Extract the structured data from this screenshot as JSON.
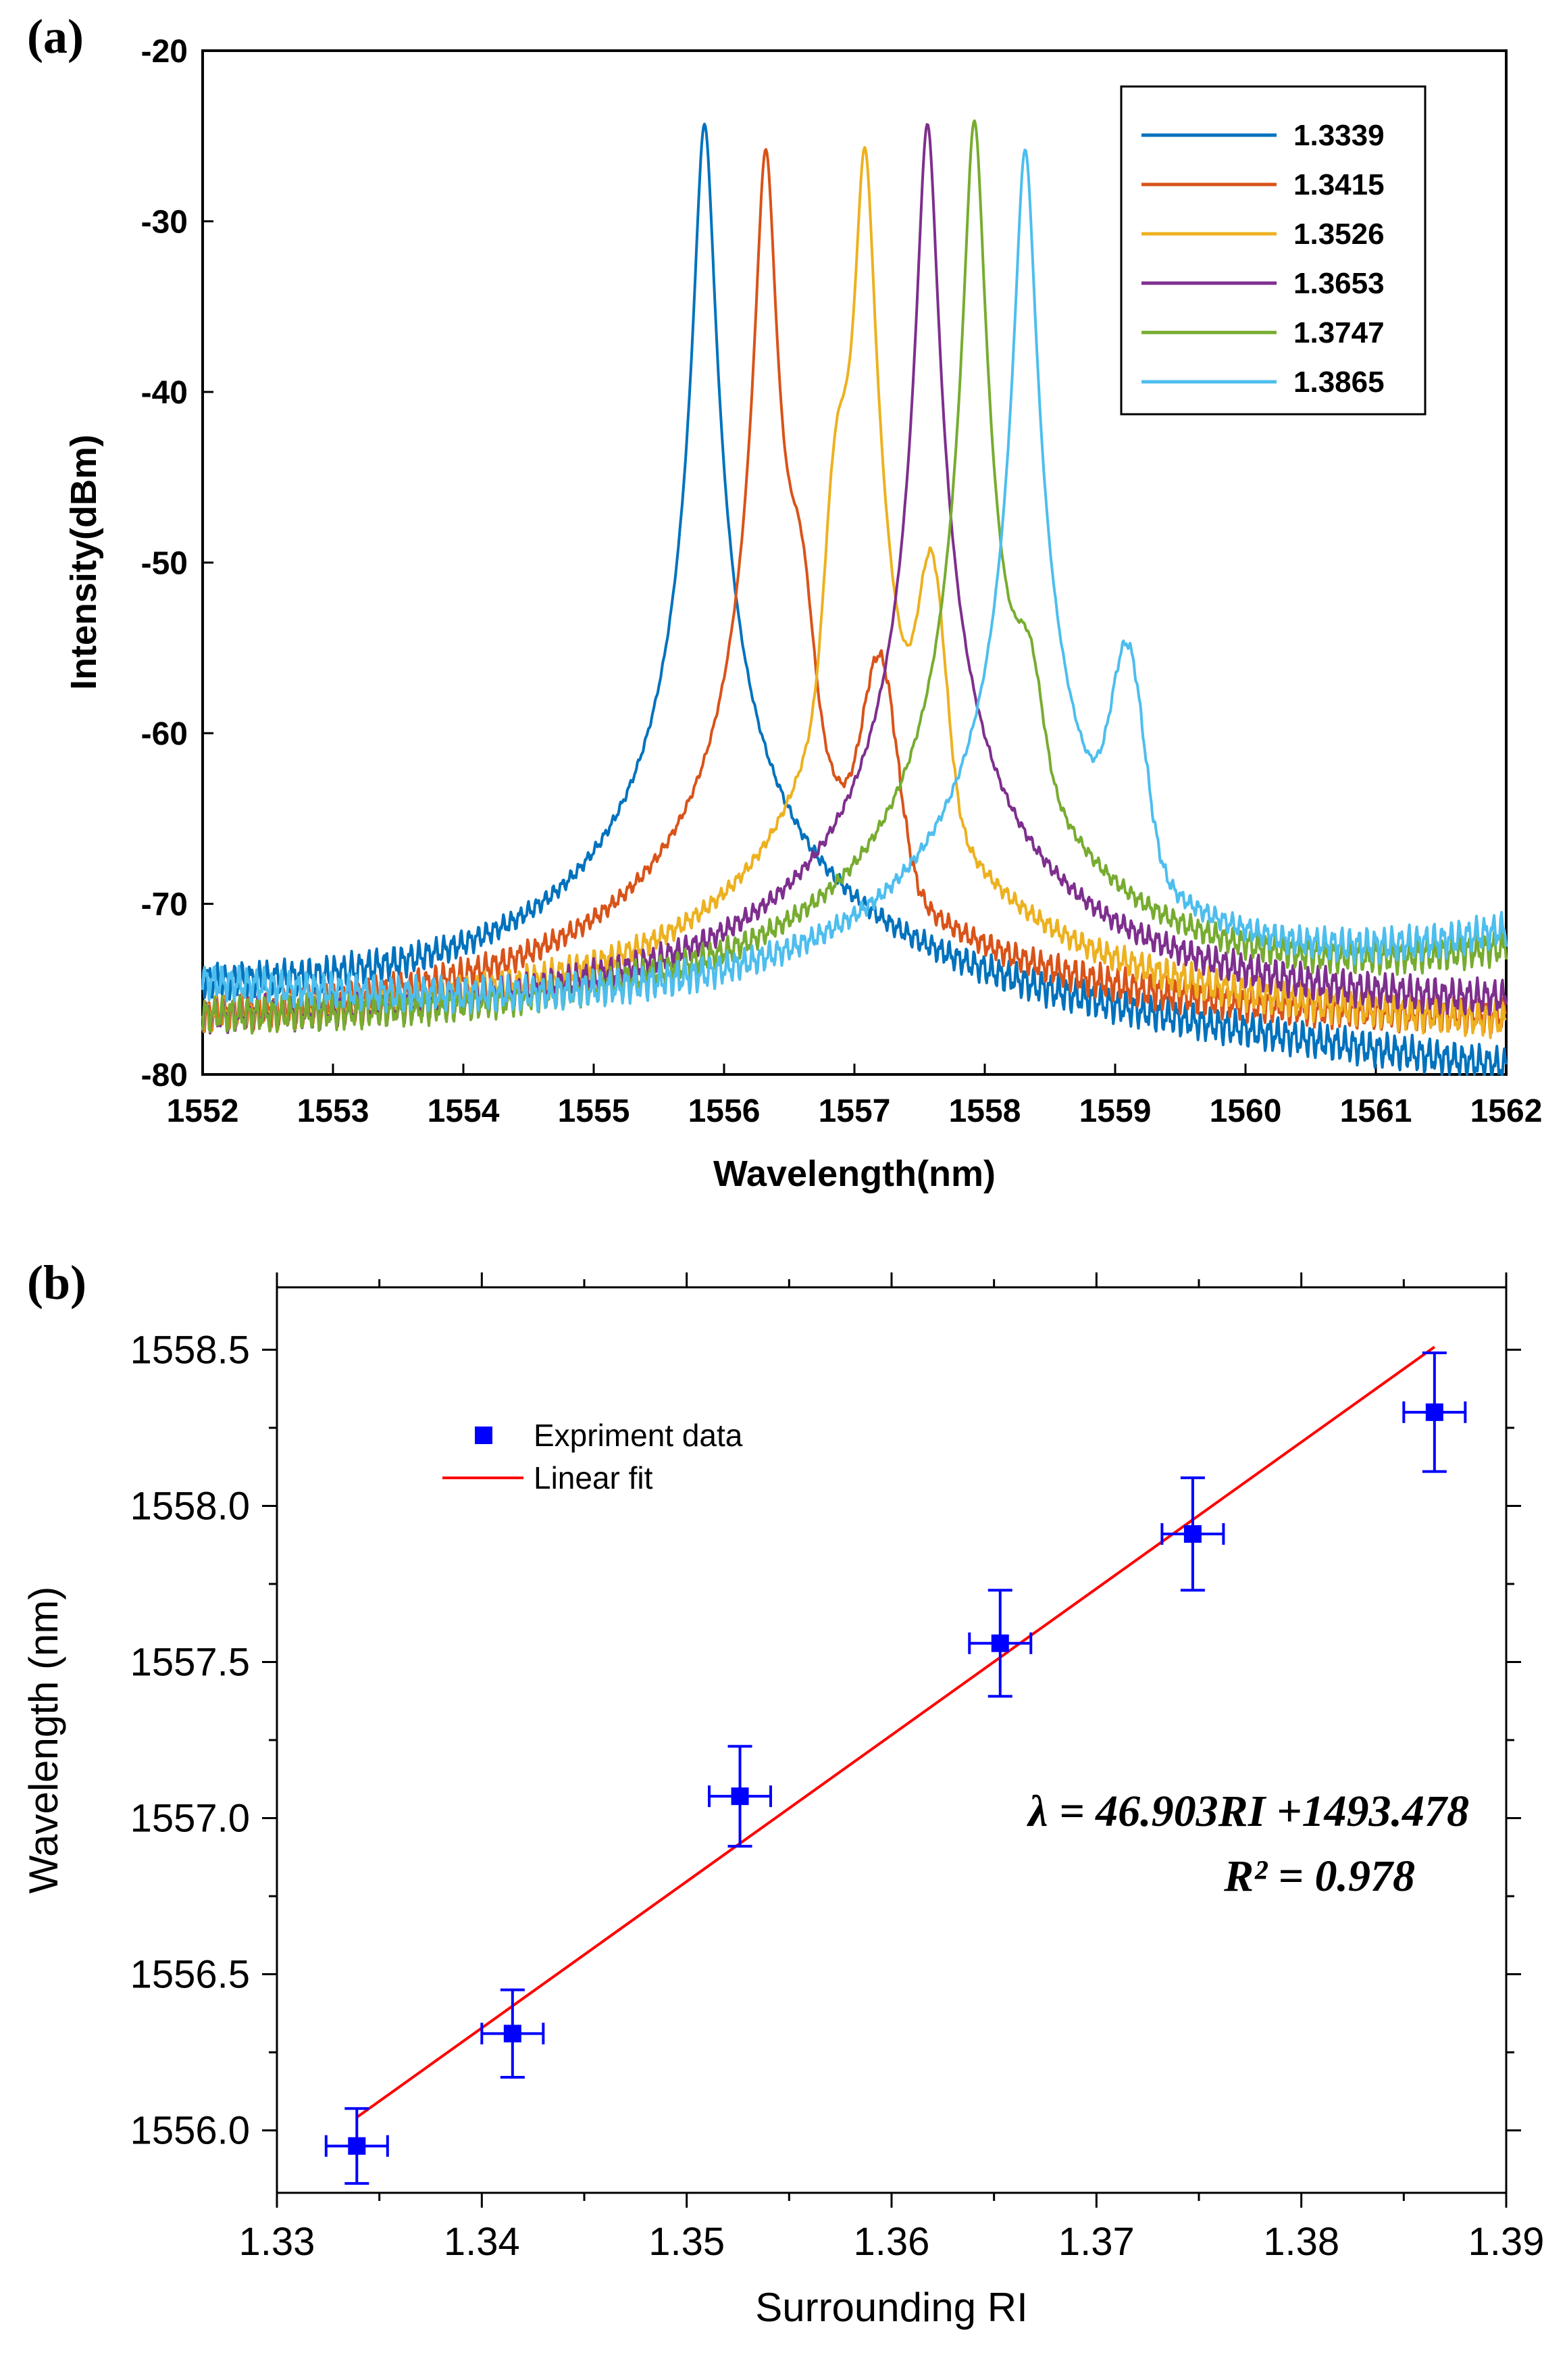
{
  "chart_data": [
    {
      "panel_label": "(a)",
      "type": "line",
      "xlabel": "Wavelength(nm)",
      "ylabel": "Intensity(dBm)",
      "xlim": [
        1552,
        1562
      ],
      "ylim": [
        -80,
        -20
      ],
      "xticks": [
        1552,
        1553,
        1554,
        1555,
        1556,
        1557,
        1558,
        1559,
        1560,
        1561,
        1562
      ],
      "yticks": [
        -20,
        -30,
        -40,
        -50,
        -60,
        -70,
        -80
      ],
      "legend_position": "top-right",
      "series": [
        {
          "name": "1.3339",
          "color": "#0072BD",
          "peak_x": 1555.85,
          "peak_y": -24.3,
          "start_y": -74.5,
          "end_y": -79.5,
          "left_slope": 0.0055,
          "right_slope": 0.0075,
          "shoulders": []
        },
        {
          "name": "1.3415",
          "color": "#D95319",
          "peak_x": 1556.32,
          "peak_y": -25.8,
          "start_y": -76.5,
          "end_y": -76.5,
          "left_slope": 0.0065,
          "right_slope": 0.0068,
          "shoulders": [
            {
              "x": 1556.6,
              "y": -48.5
            },
            {
              "x": 1557.2,
              "y": -55.5
            }
          ]
        },
        {
          "name": "1.3526",
          "color": "#EDB120",
          "peak_x": 1557.08,
          "peak_y": -25.8,
          "start_y": -76.5,
          "end_y": -76.8,
          "left_slope": 0.0065,
          "right_slope": 0.0062,
          "shoulders": [
            {
              "x": 1556.85,
              "y": -42.5
            },
            {
              "x": 1557.6,
              "y": -49.5
            }
          ]
        },
        {
          "name": "1.3653",
          "color": "#7E2F8E",
          "peak_x": 1557.56,
          "peak_y": -24.3,
          "start_y": -76.5,
          "end_y": -75.5,
          "left_slope": 0.0068,
          "right_slope": 0.0062,
          "shoulders": []
        },
        {
          "name": "1.3747",
          "color": "#77AC30",
          "peak_x": 1557.92,
          "peak_y": -24.1,
          "start_y": -76.5,
          "end_y": -72.5,
          "left_slope": 0.0068,
          "right_slope": 0.0055,
          "shoulders": [
            {
              "x": 1558.35,
              "y": -54.5
            }
          ]
        },
        {
          "name": "1.3865",
          "color": "#4DBEEE",
          "peak_x": 1558.31,
          "peak_y": -25.8,
          "start_y": -74.5,
          "end_y": -71.5,
          "left_slope": 0.0068,
          "right_slope": 0.0052,
          "shoulders": [
            {
              "x": 1558.45,
              "y": -48
            },
            {
              "x": 1559.1,
              "y": -55
            }
          ]
        }
      ]
    },
    {
      "panel_label": "(b)",
      "type": "scatter",
      "xlabel": "Surrounding RI",
      "ylabel": "Wavelength (nm)",
      "xlim": [
        1.33,
        1.39
      ],
      "ylim": [
        1555.8,
        1558.7
      ],
      "xticks": [
        1.33,
        1.34,
        1.35,
        1.36,
        1.37,
        1.38,
        1.39
      ],
      "xtick_labels": [
        "1.33",
        "1.34",
        "1.35",
        "1.36",
        "1.37",
        "1.38",
        "1.39"
      ],
      "yticks": [
        1556.0,
        1556.5,
        1557.0,
        1557.5,
        1558.0,
        1558.5
      ],
      "ytick_labels": [
        "1556.0",
        "1556.5",
        "1557.0",
        "1557.5",
        "1558.0",
        "1558.5"
      ],
      "legend_position": "top-left",
      "legend": {
        "scatter_label": "Expriment data",
        "line_label": "Linear fit"
      },
      "points": [
        {
          "x": 1.3339,
          "y": 1555.95,
          "xerr": 0.0015,
          "yerr": 0.12
        },
        {
          "x": 1.3415,
          "y": 1556.31,
          "xerr": 0.0015,
          "yerr": 0.14
        },
        {
          "x": 1.3526,
          "y": 1557.07,
          "xerr": 0.0015,
          "yerr": 0.16
        },
        {
          "x": 1.3653,
          "y": 1557.56,
          "xerr": 0.0015,
          "yerr": 0.17
        },
        {
          "x": 1.3747,
          "y": 1557.91,
          "xerr": 0.0015,
          "yerr": 0.18
        },
        {
          "x": 1.3865,
          "y": 1558.3,
          "xerr": 0.0015,
          "yerr": 0.19
        }
      ],
      "fit": {
        "slope": 46.903,
        "intercept": 1493.478,
        "x_range": [
          1.3339,
          1.3865
        ]
      },
      "equation_line1": "λ = 46.903RI +1493.478",
      "equation_line2": "R² = 0.978",
      "point_color": "#0000FF",
      "fit_color": "#FF0000"
    }
  ]
}
